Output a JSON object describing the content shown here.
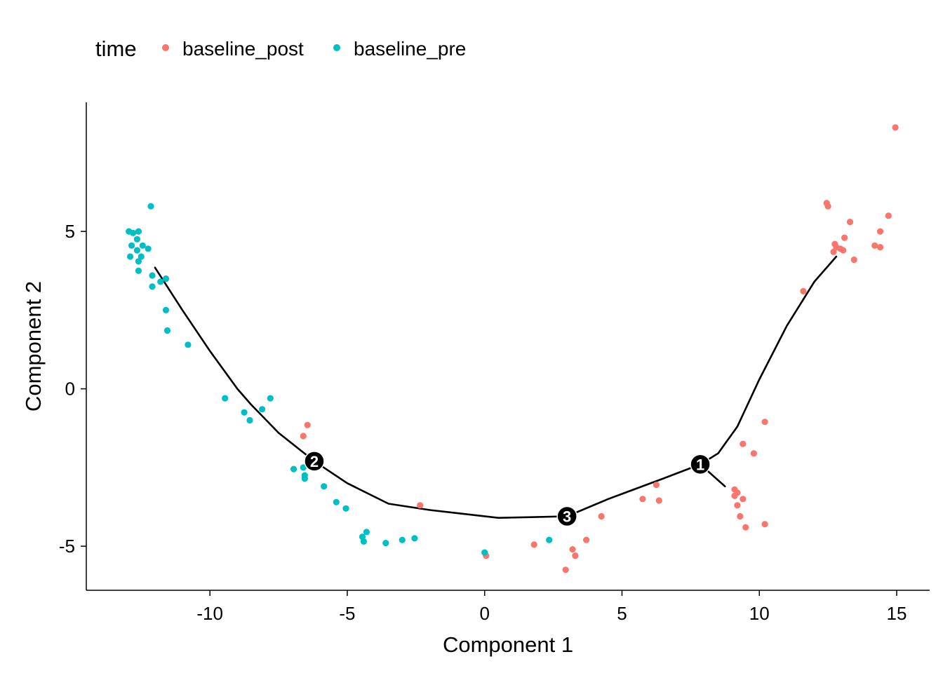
{
  "chart_data": {
    "type": "scatter",
    "xlabel": "Component 1",
    "ylabel": "Component 2",
    "xlim": [
      -14.5,
      16.2
    ],
    "ylim": [
      -6.4,
      9.1
    ],
    "xticks": [
      -10,
      -5,
      0,
      5,
      10,
      15
    ],
    "yticks": [
      -5,
      0,
      5
    ],
    "legend": {
      "title": "time",
      "position": "top-left",
      "entries": [
        {
          "name": "baseline_post",
          "color": "#F8766D"
        },
        {
          "name": "baseline_pre",
          "color": "#00BFC4"
        }
      ]
    },
    "grid": false,
    "series": [
      {
        "name": "baseline_post",
        "color": "#F8766D",
        "points": [
          [
            14.95,
            8.3
          ],
          [
            12.45,
            5.9
          ],
          [
            12.5,
            5.8
          ],
          [
            13.3,
            5.3
          ],
          [
            14.7,
            5.5
          ],
          [
            14.4,
            5.0
          ],
          [
            13.1,
            4.8
          ],
          [
            12.75,
            4.6
          ],
          [
            12.8,
            4.5
          ],
          [
            12.95,
            4.45
          ],
          [
            13.05,
            4.4
          ],
          [
            12.7,
            4.35
          ],
          [
            14.2,
            4.55
          ],
          [
            14.4,
            4.5
          ],
          [
            13.45,
            4.1
          ],
          [
            11.6,
            3.1
          ],
          [
            10.2,
            -1.05
          ],
          [
            9.4,
            -1.75
          ],
          [
            9.8,
            -2.05
          ],
          [
            9.1,
            -3.2
          ],
          [
            9.2,
            -3.3
          ],
          [
            9.1,
            -3.4
          ],
          [
            9.4,
            -3.5
          ],
          [
            9.2,
            -3.7
          ],
          [
            9.3,
            -4.05
          ],
          [
            10.2,
            -4.3
          ],
          [
            9.5,
            -4.4
          ],
          [
            6.25,
            -3.05
          ],
          [
            5.75,
            -3.5
          ],
          [
            6.35,
            -3.55
          ],
          [
            4.25,
            -4.05
          ],
          [
            3.7,
            -4.8
          ],
          [
            3.2,
            -5.1
          ],
          [
            3.3,
            -5.3
          ],
          [
            2.95,
            -5.75
          ],
          [
            1.8,
            -4.95
          ],
          [
            0.05,
            -5.3
          ],
          [
            -2.35,
            -3.7
          ],
          [
            -6.45,
            -1.15
          ],
          [
            -6.6,
            -1.5
          ]
        ]
      },
      {
        "name": "baseline_pre",
        "color": "#00BFC4",
        "points": [
          [
            -12.15,
            5.8
          ],
          [
            -12.95,
            5.0
          ],
          [
            -12.8,
            4.95
          ],
          [
            -12.6,
            5.0
          ],
          [
            -12.65,
            4.75
          ],
          [
            -12.85,
            4.55
          ],
          [
            -12.45,
            4.55
          ],
          [
            -12.65,
            4.4
          ],
          [
            -12.25,
            4.45
          ],
          [
            -12.9,
            4.2
          ],
          [
            -12.5,
            4.2
          ],
          [
            -12.6,
            4.05
          ],
          [
            -12.6,
            3.75
          ],
          [
            -12.1,
            3.6
          ],
          [
            -11.8,
            3.4
          ],
          [
            -11.6,
            3.5
          ],
          [
            -12.1,
            3.25
          ],
          [
            -11.6,
            2.5
          ],
          [
            -11.55,
            1.85
          ],
          [
            -10.8,
            1.4
          ],
          [
            -9.45,
            -0.3
          ],
          [
            -8.75,
            -0.75
          ],
          [
            -8.55,
            -1.0
          ],
          [
            -8.1,
            -0.65
          ],
          [
            -7.8,
            -0.3
          ],
          [
            -6.95,
            -2.55
          ],
          [
            -6.6,
            -2.5
          ],
          [
            -6.55,
            -2.75
          ],
          [
            -6.55,
            -2.85
          ],
          [
            -5.85,
            -3.1
          ],
          [
            -5.4,
            -3.6
          ],
          [
            -5.05,
            -3.8
          ],
          [
            -4.3,
            -4.55
          ],
          [
            -4.45,
            -4.7
          ],
          [
            -4.4,
            -4.85
          ],
          [
            -3.6,
            -4.9
          ],
          [
            -3.0,
            -4.8
          ],
          [
            -2.55,
            -4.75
          ],
          [
            0.0,
            -5.2
          ],
          [
            2.35,
            -4.8
          ]
        ]
      }
    ],
    "trajectory": [
      [
        [
          -12.0,
          3.85
        ],
        [
          -11.0,
          2.5
        ],
        [
          -10.0,
          1.2
        ],
        [
          -9.0,
          0.0
        ],
        [
          -8.5,
          -0.5
        ],
        [
          -7.5,
          -1.4
        ],
        [
          -6.2,
          -2.3
        ]
      ],
      [
        [
          -6.2,
          -2.3
        ],
        [
          -5.0,
          -3.0
        ],
        [
          -3.5,
          -3.65
        ],
        [
          -2.0,
          -3.85
        ],
        [
          0.5,
          -4.1
        ],
        [
          3.0,
          -4.05
        ]
      ],
      [
        [
          3.0,
          -4.05
        ],
        [
          4.5,
          -3.5
        ],
        [
          6.5,
          -2.85
        ],
        [
          7.85,
          -2.4
        ]
      ],
      [
        [
          7.85,
          -2.4
        ],
        [
          8.5,
          -2.05
        ],
        [
          9.2,
          -1.2
        ],
        [
          10.0,
          0.3
        ],
        [
          11.0,
          2.0
        ],
        [
          12.0,
          3.4
        ],
        [
          12.8,
          4.2
        ]
      ],
      [
        [
          7.85,
          -2.4
        ],
        [
          8.75,
          -3.1
        ]
      ]
    ],
    "branch_points": [
      {
        "label": "1",
        "x": 7.85,
        "y": -2.4
      },
      {
        "label": "2",
        "x": -6.2,
        "y": -2.3
      },
      {
        "label": "3",
        "x": 3.0,
        "y": -4.05
      }
    ]
  }
}
